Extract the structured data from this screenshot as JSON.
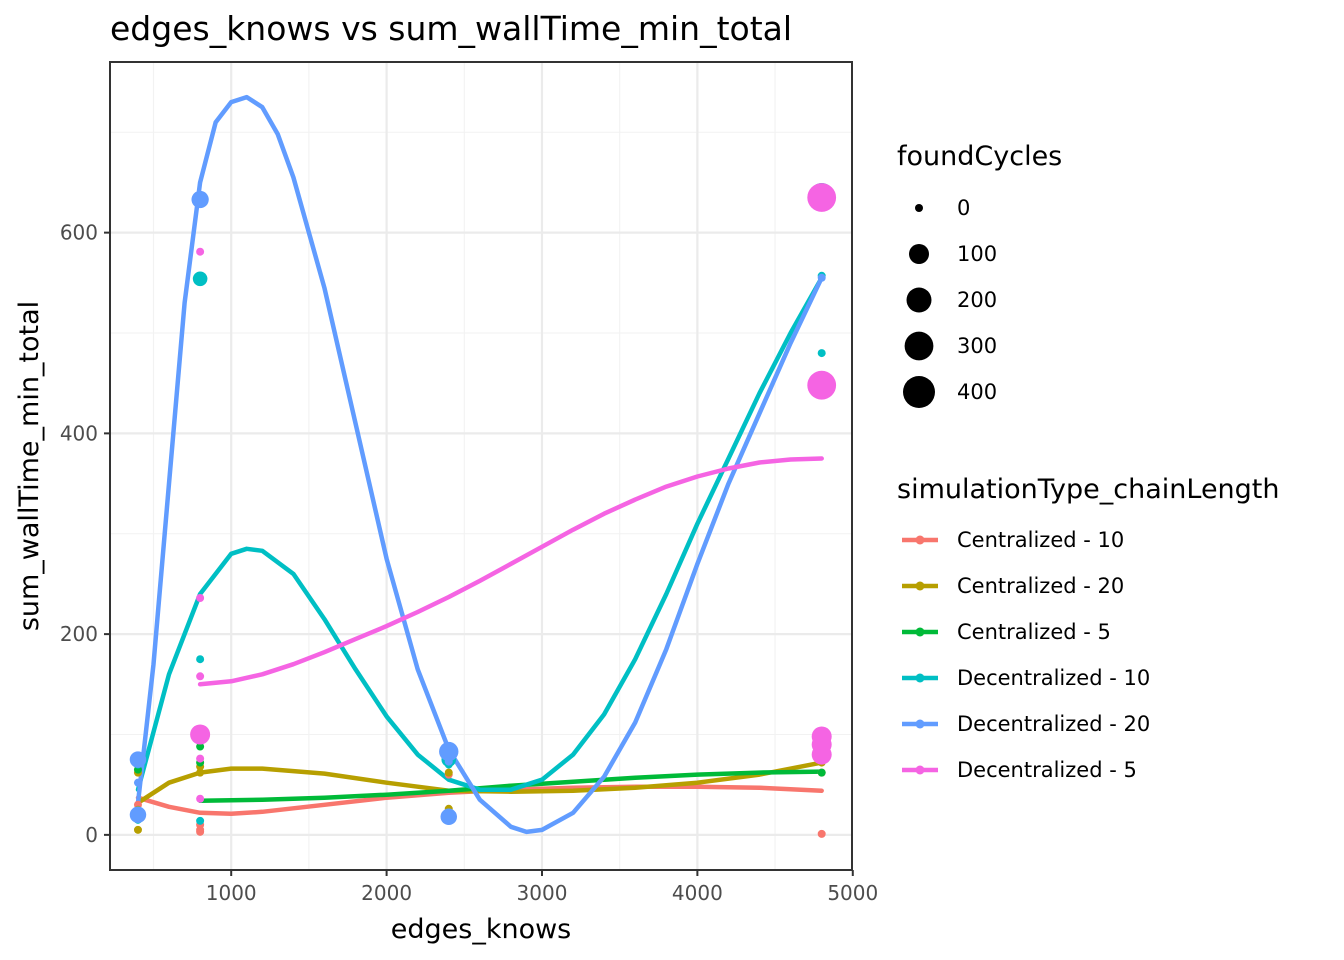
{
  "chart_data": {
    "type": "scatter",
    "title": "edges_knows  vs  sum_wallTime_min_total",
    "xlabel": "edges_knows",
    "ylabel": "sum_wallTime_min_total",
    "xlim": [
      220,
      4995
    ],
    "ylim": [
      -35,
      770
    ],
    "x_ticks": [
      1000,
      2000,
      3000,
      4000,
      5000
    ],
    "x_tick_labels": [
      "1000",
      "2000",
      "3000",
      "4000",
      "5000"
    ],
    "y_ticks": [
      0,
      200,
      400,
      600
    ],
    "y_tick_labels": [
      "0",
      "200",
      "400",
      "600"
    ],
    "grid": true,
    "legend_position": "right",
    "size_legend": {
      "title": "foundCycles",
      "entries": [
        {
          "label": "0",
          "value": 0
        },
        {
          "label": "100",
          "value": 100
        },
        {
          "label": "200",
          "value": 200
        },
        {
          "label": "300",
          "value": 300
        },
        {
          "label": "400",
          "value": 400
        }
      ]
    },
    "color_legend_title": "simulationType_chainLength",
    "series": [
      {
        "name": "Centralized - 10",
        "color": "#f8766d",
        "points": [
          [
            400,
            30,
            0
          ],
          [
            400,
            22,
            0
          ],
          [
            800,
            3,
            0
          ],
          [
            800,
            5,
            0
          ],
          [
            800,
            10,
            0
          ],
          [
            2400,
            60,
            0
          ],
          [
            4800,
            1,
            0
          ],
          [
            4800,
            62,
            0
          ]
        ],
        "smooth": [
          [
            400,
            37
          ],
          [
            600,
            28
          ],
          [
            800,
            22
          ],
          [
            1000,
            21
          ],
          [
            1200,
            23
          ],
          [
            1600,
            30
          ],
          [
            2000,
            37
          ],
          [
            2400,
            42
          ],
          [
            2800,
            45
          ],
          [
            3200,
            47
          ],
          [
            3600,
            48
          ],
          [
            4000,
            48
          ],
          [
            4400,
            47
          ],
          [
            4800,
            44
          ]
        ]
      },
      {
        "name": "Centralized - 20",
        "color": "#b79f00",
        "points": [
          [
            400,
            62,
            0
          ],
          [
            400,
            25,
            0
          ],
          [
            400,
            5,
            0
          ],
          [
            800,
            62,
            0
          ],
          [
            800,
            68,
            0
          ],
          [
            2400,
            26,
            0
          ],
          [
            2400,
            62,
            0
          ],
          [
            4800,
            72,
            0
          ]
        ],
        "smooth": [
          [
            400,
            32
          ],
          [
            600,
            52
          ],
          [
            800,
            62
          ],
          [
            1000,
            66
          ],
          [
            1200,
            66
          ],
          [
            1600,
            61
          ],
          [
            2000,
            52
          ],
          [
            2400,
            44
          ],
          [
            2800,
            43
          ],
          [
            3200,
            44
          ],
          [
            3600,
            47
          ],
          [
            4000,
            52
          ],
          [
            4400,
            60
          ],
          [
            4800,
            72
          ]
        ]
      },
      {
        "name": "Centralized - 5",
        "color": "#00ba38",
        "points": [
          [
            400,
            65,
            0
          ],
          [
            800,
            88,
            0
          ],
          [
            800,
            72,
            0
          ],
          [
            2400,
            75,
            0
          ],
          [
            4800,
            62,
            0
          ]
        ],
        "smooth": [
          [
            800,
            34
          ],
          [
            1200,
            35
          ],
          [
            1600,
            37
          ],
          [
            2000,
            40
          ],
          [
            2400,
            44
          ],
          [
            2800,
            49
          ],
          [
            3200,
            53
          ],
          [
            3600,
            57
          ],
          [
            4000,
            60
          ],
          [
            4400,
            62
          ],
          [
            4800,
            63
          ]
        ]
      },
      {
        "name": "Decentralized - 10",
        "color": "#00bfc4",
        "points": [
          [
            400,
            70,
            0
          ],
          [
            400,
            15,
            0
          ],
          [
            800,
            554,
            30
          ],
          [
            800,
            175,
            0
          ],
          [
            800,
            14,
            0
          ],
          [
            2400,
            75,
            30
          ],
          [
            2400,
            70,
            0
          ],
          [
            4800,
            557,
            0
          ],
          [
            4800,
            480,
            0
          ],
          [
            4800,
            637,
            200
          ]
        ],
        "smooth": [
          [
            400,
            45
          ],
          [
            600,
            160
          ],
          [
            800,
            240
          ],
          [
            1000,
            280
          ],
          [
            1100,
            285
          ],
          [
            1200,
            283
          ],
          [
            1400,
            260
          ],
          [
            1600,
            215
          ],
          [
            1800,
            165
          ],
          [
            2000,
            118
          ],
          [
            2200,
            80
          ],
          [
            2400,
            55
          ],
          [
            2600,
            45
          ],
          [
            2800,
            45
          ],
          [
            3000,
            55
          ],
          [
            3200,
            80
          ],
          [
            3400,
            120
          ],
          [
            3600,
            175
          ],
          [
            3800,
            240
          ],
          [
            4000,
            310
          ],
          [
            4200,
            375
          ],
          [
            4400,
            440
          ],
          [
            4600,
            500
          ],
          [
            4800,
            555
          ]
        ]
      },
      {
        "name": "Decentralized - 20",
        "color": "#619cff",
        "points": [
          [
            400,
            75,
            50
          ],
          [
            400,
            20,
            50
          ],
          [
            400,
            52,
            0
          ],
          [
            800,
            633,
            60
          ],
          [
            2400,
            83,
            90
          ],
          [
            2400,
            18,
            50
          ],
          [
            2400,
            73,
            0
          ],
          [
            4800,
            555,
            0
          ]
        ],
        "smooth": [
          [
            400,
            32
          ],
          [
            500,
            170
          ],
          [
            600,
            350
          ],
          [
            700,
            530
          ],
          [
            800,
            650
          ],
          [
            900,
            710
          ],
          [
            1000,
            730
          ],
          [
            1100,
            735
          ],
          [
            1200,
            725
          ],
          [
            1300,
            698
          ],
          [
            1400,
            655
          ],
          [
            1600,
            545
          ],
          [
            1800,
            410
          ],
          [
            2000,
            275
          ],
          [
            2200,
            165
          ],
          [
            2400,
            85
          ],
          [
            2600,
            35
          ],
          [
            2800,
            8
          ],
          [
            2900,
            3
          ],
          [
            3000,
            5
          ],
          [
            3200,
            22
          ],
          [
            3400,
            58
          ],
          [
            3600,
            112
          ],
          [
            3800,
            185
          ],
          [
            4000,
            270
          ],
          [
            4200,
            350
          ],
          [
            4400,
            420
          ],
          [
            4600,
            490
          ],
          [
            4800,
            555
          ]
        ]
      },
      {
        "name": "Decentralized - 5",
        "color": "#f564e3",
        "points": [
          [
            800,
            581,
            0
          ],
          [
            800,
            236,
            0
          ],
          [
            800,
            158,
            0
          ],
          [
            800,
            100,
            100
          ],
          [
            800,
            76,
            0
          ],
          [
            800,
            36,
            0
          ],
          [
            4800,
            635,
            300
          ],
          [
            4800,
            448,
            300
          ],
          [
            4800,
            98,
            100
          ],
          [
            4800,
            90,
            100
          ],
          [
            4800,
            80,
            100
          ]
        ],
        "smooth": [
          [
            800,
            150
          ],
          [
            1000,
            153
          ],
          [
            1200,
            160
          ],
          [
            1400,
            170
          ],
          [
            1600,
            182
          ],
          [
            1800,
            195
          ],
          [
            2000,
            208
          ],
          [
            2200,
            222
          ],
          [
            2400,
            237
          ],
          [
            2600,
            253
          ],
          [
            2800,
            270
          ],
          [
            3000,
            287
          ],
          [
            3200,
            304
          ],
          [
            3400,
            320
          ],
          [
            3600,
            334
          ],
          [
            3800,
            347
          ],
          [
            4000,
            357
          ],
          [
            4200,
            365
          ],
          [
            4400,
            371
          ],
          [
            4600,
            374
          ],
          [
            4800,
            375
          ]
        ]
      }
    ]
  }
}
